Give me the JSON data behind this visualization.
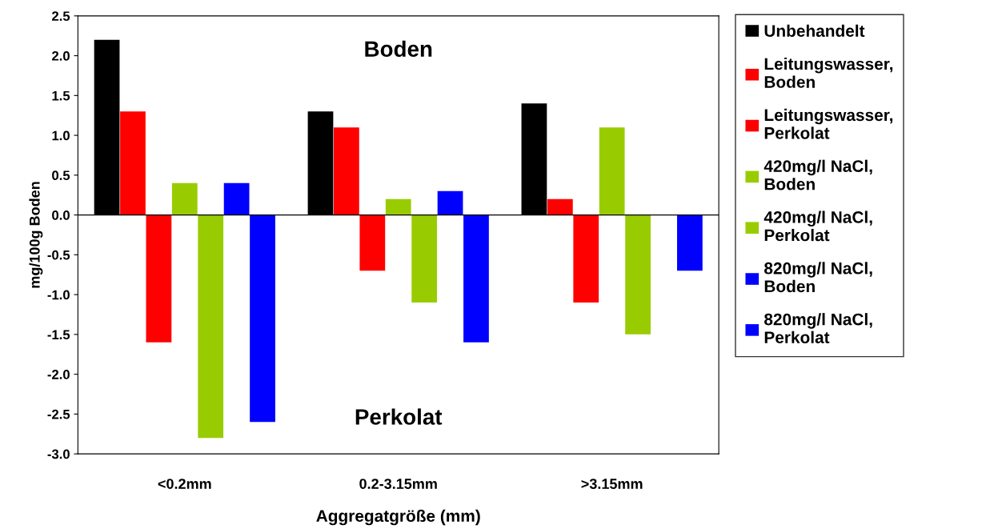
{
  "chart_data": {
    "type": "bar",
    "xlabel": "Aggregatgröße (mm)",
    "ylabel": "mg/100g Boden",
    "categories": [
      "<0.2mm",
      "0.2-3.15mm",
      ">3.15mm"
    ],
    "series": [
      {
        "name": "Unbehandelt",
        "color": "#000000",
        "values": [
          2.2,
          1.3,
          1.4
        ]
      },
      {
        "name": "Leitungswasser, Boden",
        "color": "#ff0000",
        "values": [
          1.3,
          1.1,
          0.2
        ]
      },
      {
        "name": "Leitungswasser, Perkolat",
        "color": "#ff0000",
        "values": [
          -1.6,
          -0.7,
          -1.1
        ]
      },
      {
        "name": "420mg/l NaCl, Boden",
        "color": "#99cc00",
        "values": [
          0.4,
          0.2,
          1.1
        ]
      },
      {
        "name": "420mg/l NaCl, Perkolat",
        "color": "#99cc00",
        "values": [
          -2.8,
          -1.1,
          -1.5
        ]
      },
      {
        "name": "820mg/l NaCl, Boden",
        "color": "#0000ff",
        "values": [
          0.4,
          0.3,
          null
        ]
      },
      {
        "name": "820mg/l NaCl, Perkolat",
        "color": "#0000ff",
        "values": [
          -2.6,
          -1.6,
          -0.7
        ]
      }
    ],
    "ylim": [
      -3.0,
      2.5
    ],
    "yticks": [
      {
        "value": -3,
        "label": "-3.0"
      },
      {
        "value": -2.5,
        "label": "-2.5"
      },
      {
        "value": -2,
        "label": "-2.0"
      },
      {
        "value": -1.5,
        "label": "-1.5"
      },
      {
        "value": -1,
        "label": "-1.0"
      },
      {
        "value": -0.5,
        "label": "-0.5"
      },
      {
        "value": 0,
        "label": "0.0"
      },
      {
        "value": 0.5,
        "label": "0.5"
      },
      {
        "value": 1,
        "label": "1.0"
      },
      {
        "value": 1.5,
        "label": "1.5"
      },
      {
        "value": 2,
        "label": "2.0"
      },
      {
        "value": 2.5,
        "label": "2.5"
      }
    ],
    "annotations": [
      "Boden",
      "Perkolat"
    ],
    "legend": "right",
    "ref_lines": [
      {
        "axis": "y",
        "value": 0,
        "color": "#000000"
      }
    ]
  }
}
